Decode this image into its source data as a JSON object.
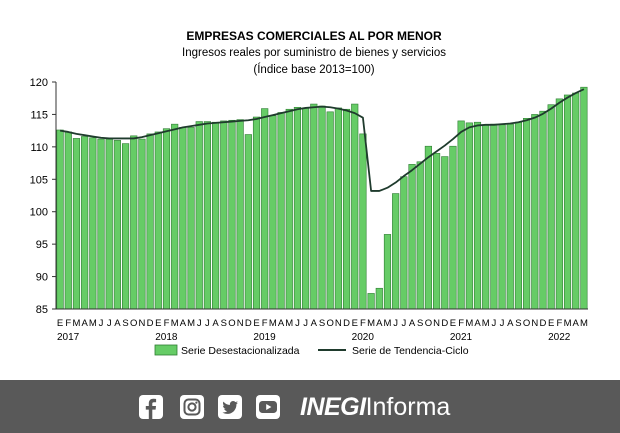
{
  "chart_data": {
    "type": "bar",
    "title": "EMPRESAS COMERCIALES AL POR MENOR",
    "subtitle": "Ingresos reales por suministro de bienes y servicios",
    "subtitle2": "(Índice base 2013=100)",
    "ylim": [
      85,
      120
    ],
    "yticks": [
      85,
      90,
      95,
      100,
      105,
      110,
      115,
      120
    ],
    "grid": false,
    "legend_position": "bottom",
    "month_labels": [
      "E",
      "F",
      "M",
      "A",
      "M",
      "J",
      "J",
      "A",
      "S",
      "O",
      "N",
      "D"
    ],
    "years": [
      "2017",
      "2018",
      "2019",
      "2020",
      "2021",
      "2022"
    ],
    "series": [
      {
        "name": "Serie Desestacionalizada",
        "kind": "bar",
        "color": "#66cc66",
        "values": [
          112.6,
          112.3,
          111.3,
          111.6,
          111.4,
          111.2,
          111.2,
          111.0,
          110.5,
          111.7,
          111.2,
          112.0,
          112.3,
          112.8,
          113.5,
          113.0,
          113.0,
          113.9,
          113.9,
          113.8,
          114.0,
          114.1,
          114.2,
          111.9,
          114.6,
          115.9,
          114.8,
          115.3,
          115.8,
          116.1,
          116.0,
          116.6,
          116.3,
          115.4,
          116.0,
          115.8,
          116.6,
          112.0,
          87.4,
          88.2,
          96.5,
          102.8,
          105.4,
          107.3,
          107.7,
          110.1,
          109.0,
          108.5,
          110.1,
          114.0,
          113.7,
          113.8,
          113.4,
          113.5,
          113.4,
          113.5,
          113.8,
          114.4,
          115.0,
          115.5,
          116.5,
          117.4,
          118.0,
          118.3,
          119.2
        ]
      },
      {
        "name": "Serie de Tendencia-Ciclo",
        "kind": "line",
        "color": "#1f3b2d",
        "values": [
          112.5,
          112.3,
          112.0,
          111.8,
          111.6,
          111.4,
          111.3,
          111.3,
          111.3,
          111.3,
          111.5,
          111.8,
          112.1,
          112.4,
          112.7,
          113.0,
          113.2,
          113.4,
          113.6,
          113.7,
          113.8,
          113.9,
          114.0,
          114.1,
          114.3,
          114.6,
          114.9,
          115.2,
          115.5,
          115.8,
          116.0,
          116.1,
          116.2,
          116.1,
          115.9,
          115.6,
          115.2,
          114.5,
          103.2,
          103.2,
          103.7,
          104.5,
          105.5,
          106.4,
          107.4,
          108.4,
          109.3,
          110.2,
          111.2,
          112.3,
          113.0,
          113.3,
          113.4,
          113.4,
          113.5,
          113.6,
          113.8,
          114.1,
          114.5,
          115.1,
          115.9,
          116.8,
          117.6,
          118.3,
          118.9
        ]
      }
    ]
  },
  "footer": {
    "icons": [
      "facebook-icon",
      "instagram-icon",
      "twitter-icon",
      "youtube-icon"
    ],
    "brand_bold": "INEGI",
    "brand_rest": "Informa",
    "background_color": "#595959"
  }
}
